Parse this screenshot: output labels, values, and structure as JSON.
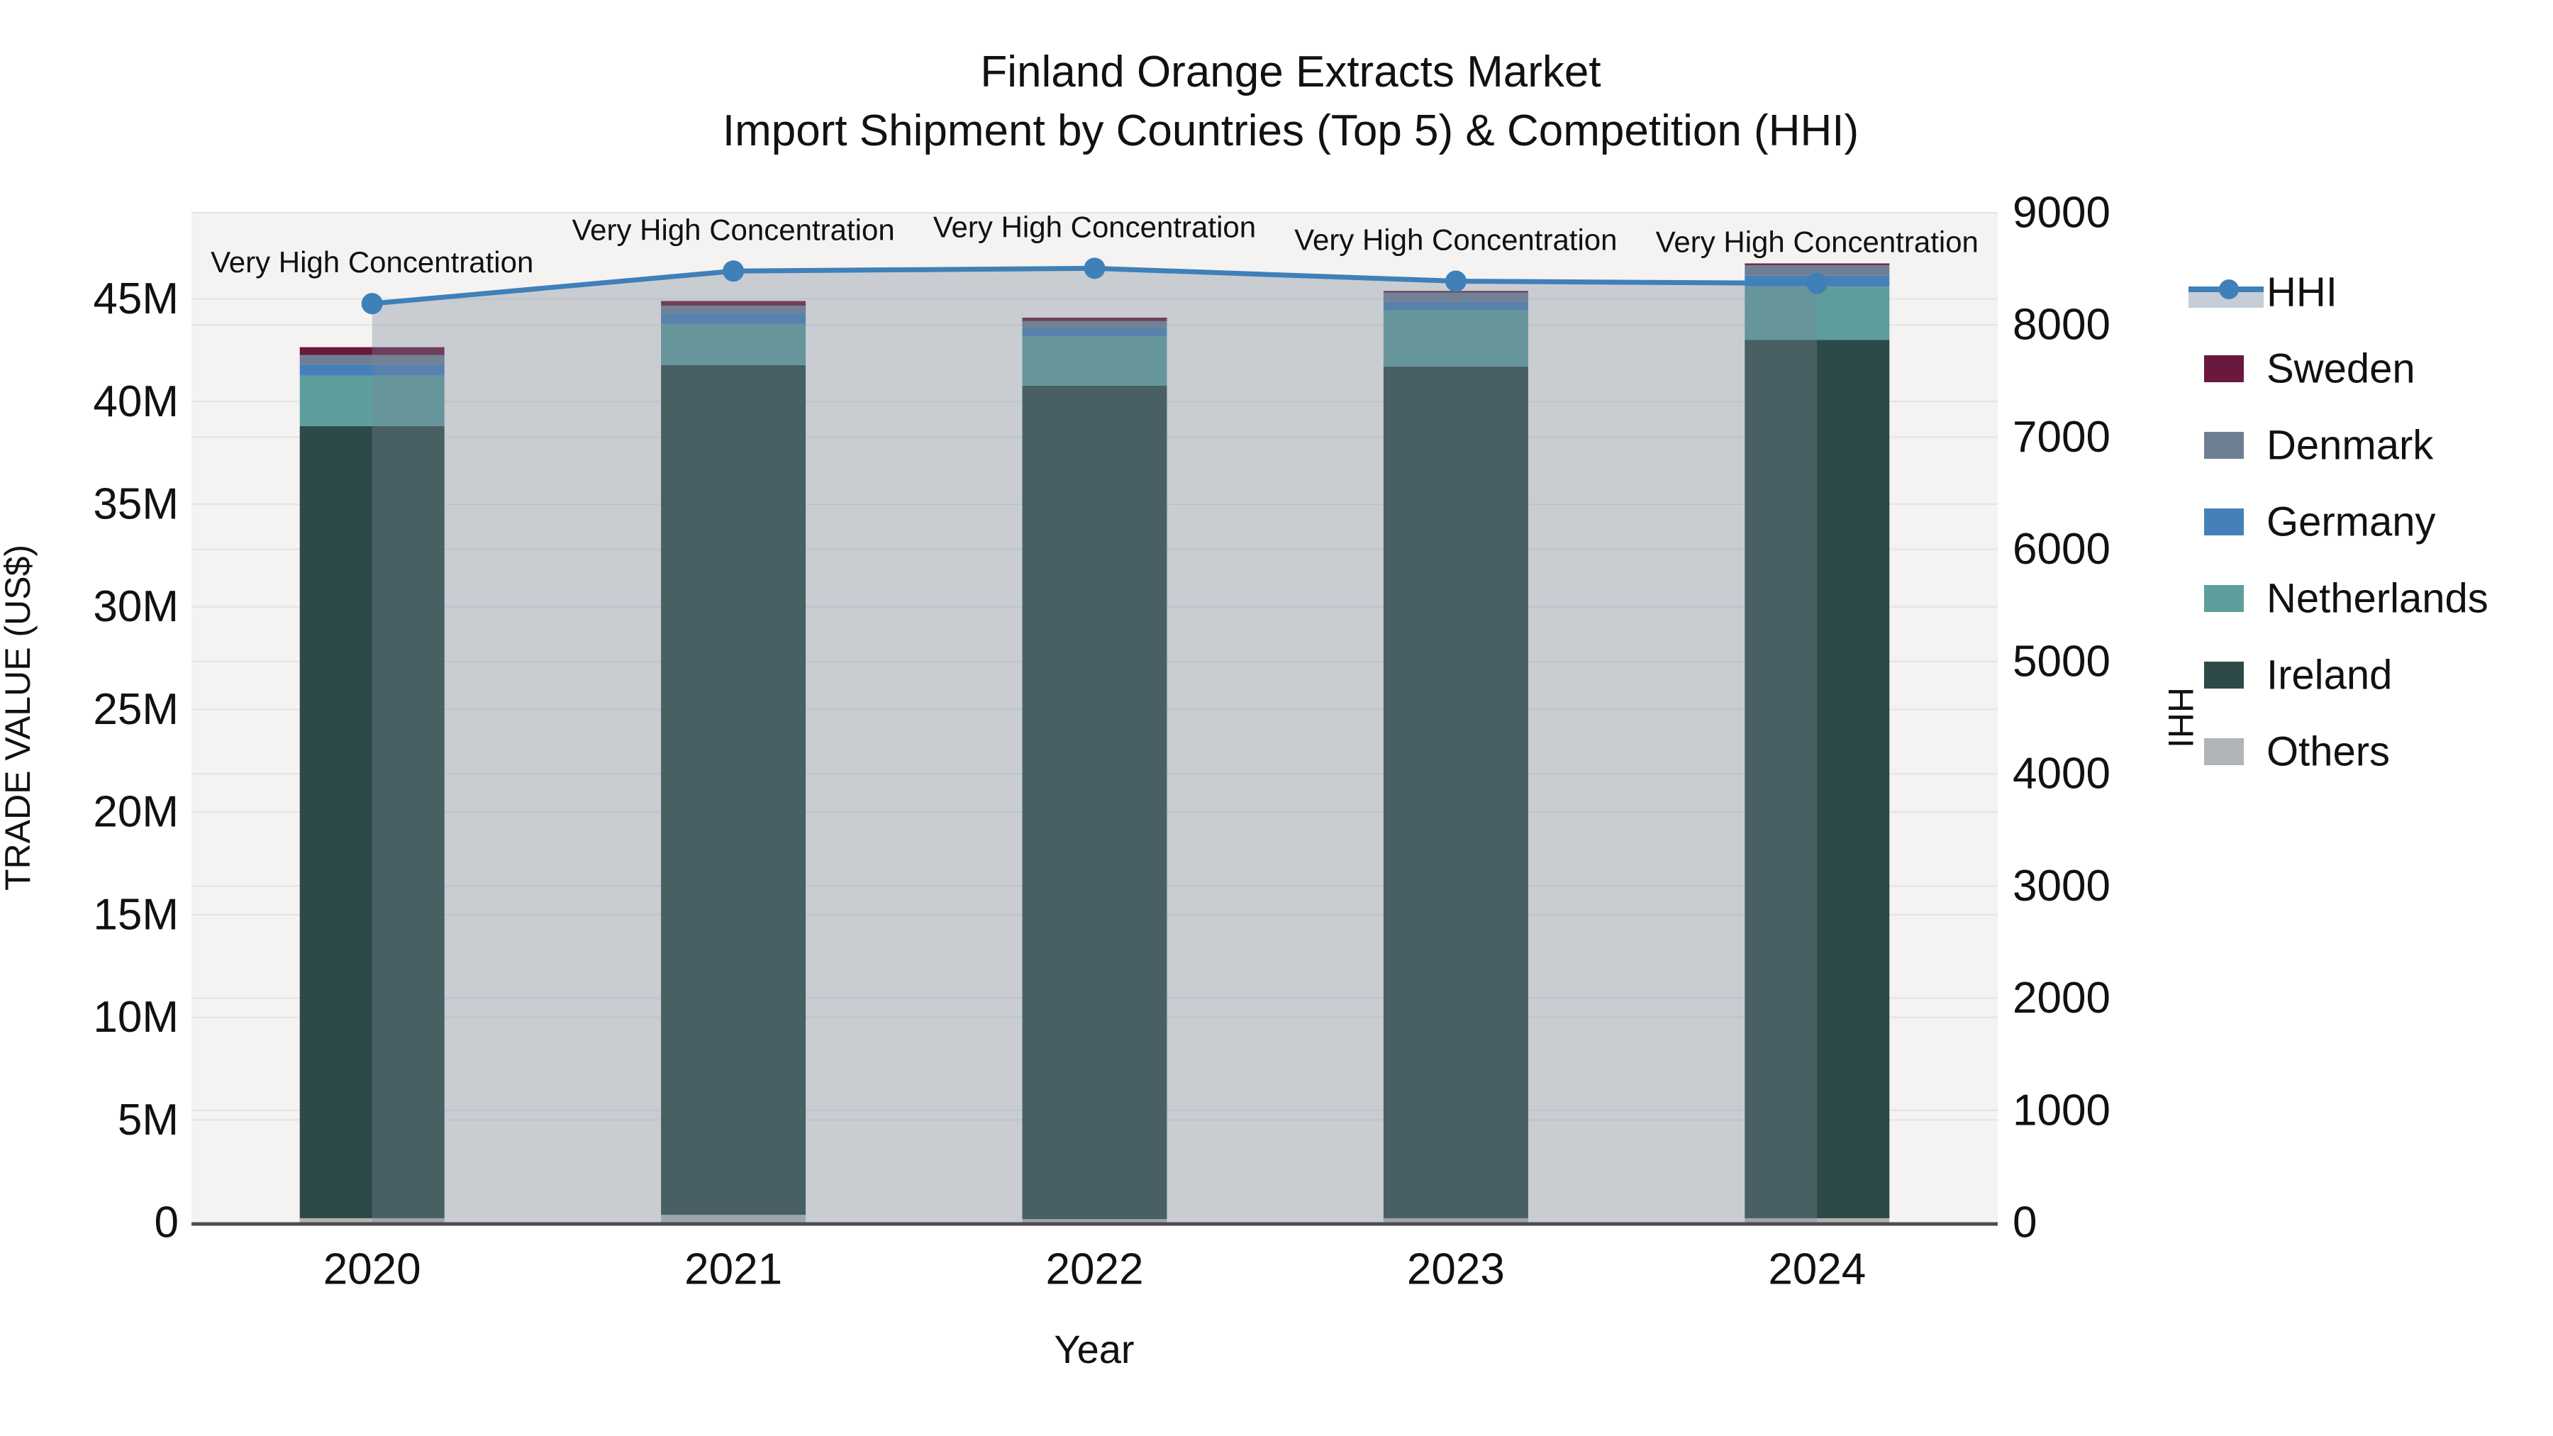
{
  "chart_data": {
    "type": "combo-stacked-bar-line",
    "title_line1": "Finland Orange Extracts Market",
    "title_line2": "Import Shipment by Countries (Top 5) & Competition (HHI)",
    "xlabel": "Year",
    "ylabel_left": "TRADE VALUE (US$)",
    "ylabel_right": "HHI",
    "categories": [
      "2020",
      "2021",
      "2022",
      "2023",
      "2024"
    ],
    "values_unit": "US$ millions",
    "bar_series_bottom_to_top": [
      {
        "name": "Others",
        "color": "#b2b5b7",
        "values": [
          0.21,
          0.38,
          0.17,
          0.21,
          0.21
        ]
      },
      {
        "name": "Ireland",
        "color": "#2e4a48",
        "values": [
          38.6,
          41.4,
          40.6,
          41.5,
          42.8
        ]
      },
      {
        "name": "Netherlands",
        "color": "#5d9e9d",
        "values": [
          2.45,
          2.0,
          2.42,
          2.74,
          2.59
        ]
      },
      {
        "name": "Germany",
        "color": "#4580bb",
        "values": [
          0.55,
          0.51,
          0.38,
          0.4,
          0.53
        ]
      },
      {
        "name": "Denmark",
        "color": "#6f7f93",
        "values": [
          0.46,
          0.38,
          0.35,
          0.46,
          0.52
        ]
      },
      {
        "name": "Sweden",
        "color": "#69193d",
        "values": [
          0.38,
          0.23,
          0.17,
          0.08,
          0.08
        ]
      }
    ],
    "bar_totals": [
      42.65,
      44.9,
      44.09,
      45.39,
      46.73
    ],
    "line_series": {
      "name": "HHI",
      "color": "#4080b8",
      "fill_color": "rgba(119,136,153,0.35)",
      "values": [
        8190,
        8480,
        8505,
        8390,
        8370
      ]
    },
    "annotations": [
      {
        "x": "2020",
        "text": "Very High Concentration"
      },
      {
        "x": "2021",
        "text": "Very High Concentration"
      },
      {
        "x": "2022",
        "text": "Very High Concentration"
      },
      {
        "x": "2023",
        "text": "Very High Concentration"
      },
      {
        "x": "2024",
        "text": "Very High Concentration"
      }
    ],
    "y_left_axis": {
      "min": 0,
      "max": 49200000,
      "tick_labels": [
        "0",
        "5M",
        "10M",
        "15M",
        "20M",
        "25M",
        "30M",
        "35M",
        "40M",
        "45M"
      ],
      "tick_values": [
        0,
        5000000,
        10000000,
        15000000,
        20000000,
        25000000,
        30000000,
        35000000,
        40000000,
        45000000
      ]
    },
    "y_right_axis": {
      "min": 0,
      "max": 9000,
      "tick_labels": [
        "0",
        "1000",
        "2000",
        "3000",
        "4000",
        "5000",
        "6000",
        "7000",
        "8000",
        "9000"
      ],
      "tick_values": [
        0,
        1000,
        2000,
        3000,
        4000,
        5000,
        6000,
        7000,
        8000,
        9000
      ]
    },
    "legend_order": [
      "HHI",
      "Sweden",
      "Denmark",
      "Germany",
      "Netherlands",
      "Ireland",
      "Others"
    ],
    "legend_position": "right",
    "grid": true,
    "plot_bg_color": "#f4f3f2",
    "gridline_color": "#e3e3e3",
    "axisline_color": "#4d4d4d"
  }
}
